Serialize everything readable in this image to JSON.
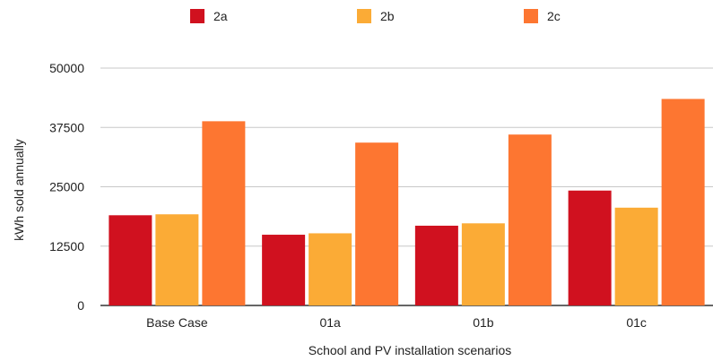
{
  "chart_data": {
    "type": "bar",
    "title": "",
    "xlabel": "School and PV installation scenarios",
    "ylabel": "kWh sold annually",
    "categories": [
      "Base Case",
      "01a",
      "01b",
      "01c"
    ],
    "y_ticks": [
      "0",
      "12500",
      "25000",
      "37500",
      "50000"
    ],
    "y_tick_values": [
      0,
      12500,
      25000,
      37500,
      50000
    ],
    "ylim": [
      0,
      50000
    ],
    "grid": true,
    "legend_position": "top",
    "series": [
      {
        "name": "2a",
        "color": "#d0111f",
        "values": [
          19000,
          14900,
          16800,
          24200
        ]
      },
      {
        "name": "2b",
        "color": "#fbab36",
        "values": [
          19200,
          15200,
          17300,
          20600
        ]
      },
      {
        "name": "2c",
        "color": "#fd7631",
        "values": [
          38800,
          34300,
          36000,
          43500
        ]
      }
    ]
  }
}
